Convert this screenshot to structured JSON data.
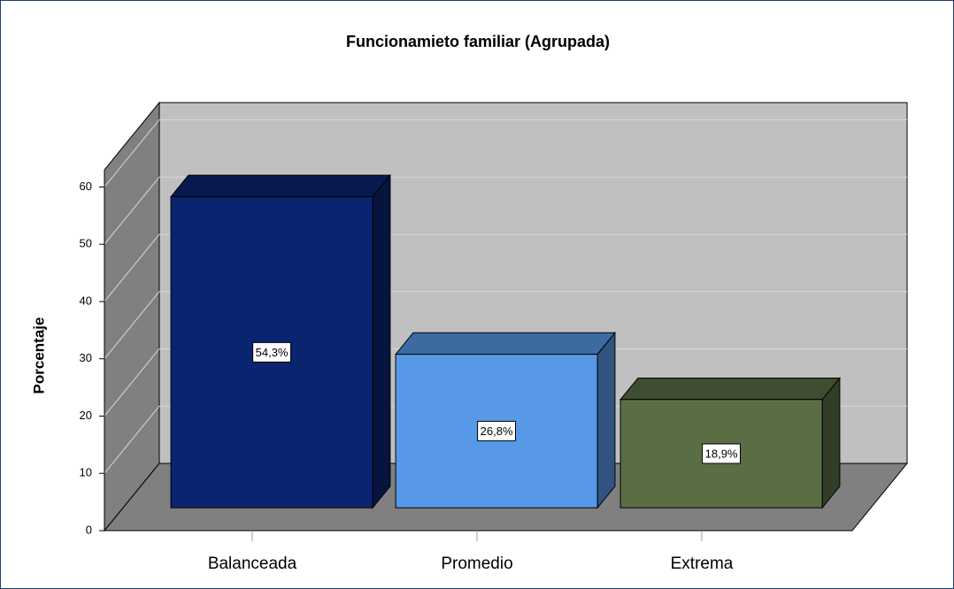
{
  "chart_data": {
    "type": "bar3d",
    "title": "Funcionamieto familiar (Agrupada)",
    "y_label": "Porcentaje",
    "categories": [
      "Balanceada",
      "Promedio",
      "Extrema"
    ],
    "values": [
      54.3,
      26.8,
      18.9
    ],
    "value_labels": [
      "54,3%",
      "26,8%",
      "18,9%"
    ],
    "colors": [
      "#0a2470",
      "#5799e6",
      "#5a6e46"
    ],
    "ylim": [
      0,
      63
    ],
    "yticks": [
      0,
      10,
      20,
      30,
      40,
      50,
      60
    ],
    "grid": true
  }
}
